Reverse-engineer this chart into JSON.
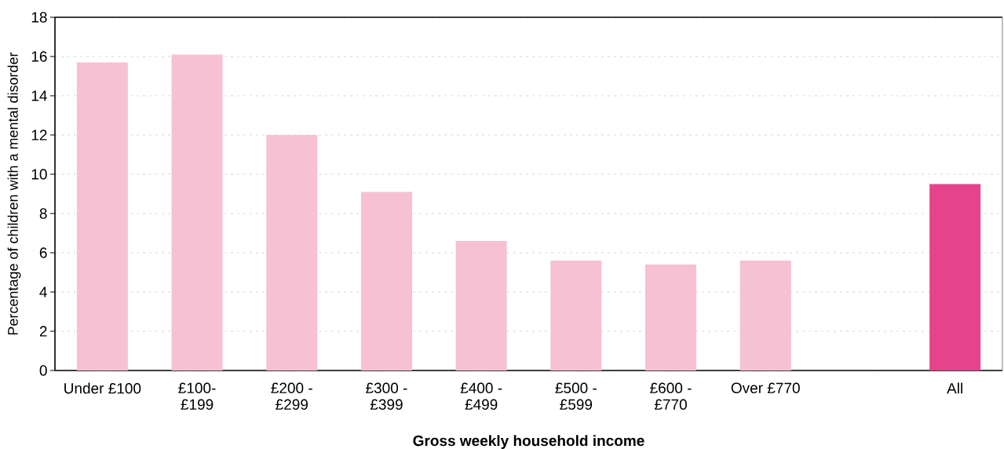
{
  "chart_data": {
    "type": "bar",
    "xlabel": "Gross weekly household income",
    "ylabel": "Percentage of children with a mental disorder",
    "categories": [
      "Under £100",
      "£100- £199",
      "£200 - £299",
      "£300 - £399",
      "£400 - £499",
      "£500 - £599",
      "£600 - £770",
      "Over £770",
      null,
      "All"
    ],
    "values": [
      15.7,
      16.1,
      12.0,
      9.1,
      6.6,
      5.6,
      5.4,
      5.6,
      null,
      9.5
    ],
    "colors": [
      "#f6c1d2",
      "#f6c1d2",
      "#f6c1d2",
      "#f6c1d2",
      "#f6c1d2",
      "#f6c1d2",
      "#f6c1d2",
      "#f6c1d2",
      "#f6c1d2",
      "#e5448b"
    ],
    "ylim": [
      0,
      18
    ],
    "yticks": [
      0,
      2,
      4,
      6,
      8,
      10,
      12,
      14,
      16,
      18
    ],
    "grid": "y"
  }
}
